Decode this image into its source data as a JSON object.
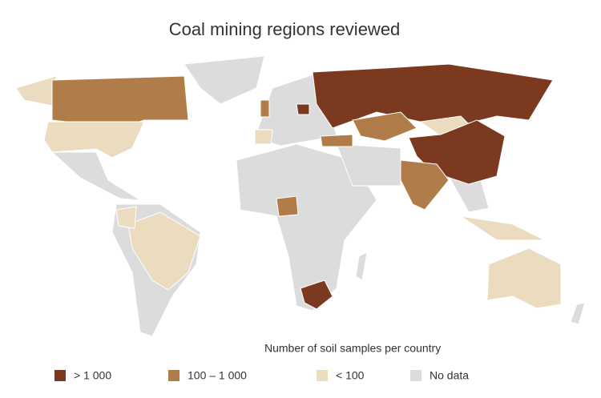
{
  "title": "Coal mining regions reviewed",
  "legend": {
    "title": "Number of soil samples per country",
    "items": [
      {
        "label": "> 1 000",
        "color": "#7b3a20"
      },
      {
        "label": "100 – 1 000",
        "color": "#b07d4a"
      },
      {
        "label": "< 100",
        "color": "#ecdcbf"
      },
      {
        "label": "No data",
        "color": "#dcdcdc"
      }
    ]
  }
}
